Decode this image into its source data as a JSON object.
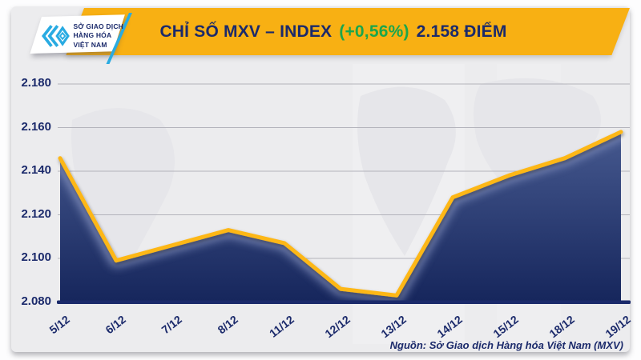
{
  "logo": {
    "icon": "mxv-chevron-mark",
    "lines": [
      "SỞ GIAO DỊCH",
      "HÀNG HÓA",
      "VIỆT NAM"
    ]
  },
  "header": {
    "title_main": "CHỈ SỐ MXV – INDEX",
    "title_change": "(+0,56%)",
    "title_value": "2.158 ĐIỂM",
    "colors": {
      "banner_gold": "#F8B013",
      "navy": "#1B2A6B",
      "change_green": "#1AA64C"
    }
  },
  "chart_data": {
    "type": "area",
    "title": "CHỈ SỐ MXV – INDEX (+0,56%) 2.158 ĐIỂM",
    "categories": [
      "5/12",
      "6/12",
      "7/12",
      "8/12",
      "11/12",
      "12/12",
      "13/12",
      "14/12",
      "15/12",
      "18/12",
      "19/12"
    ],
    "values": [
      2146,
      2099,
      2106,
      2113,
      2107,
      2086,
      2083,
      2128,
      2138,
      2146,
      2158
    ],
    "ylim": [
      2080,
      2180
    ],
    "yticks": [
      "2.180",
      "2.160",
      "2.140",
      "2.120",
      "2.100",
      "2.080"
    ],
    "ytick_values": [
      2180,
      2160,
      2140,
      2120,
      2100,
      2080
    ],
    "xlabel": "",
    "ylabel": "",
    "grid": true,
    "legend": "none",
    "line_color": "#FDB714",
    "line_halo_color": "#8B98C4",
    "area_gradient": [
      "#46598F",
      "#16265C"
    ],
    "baseline_color": "#1B2A6B",
    "gridline_color": "#b3b3bb"
  },
  "footer": {
    "source": "Nguồn: Sở Giao dịch Hàng hóa Việt Nam (MXV)"
  }
}
